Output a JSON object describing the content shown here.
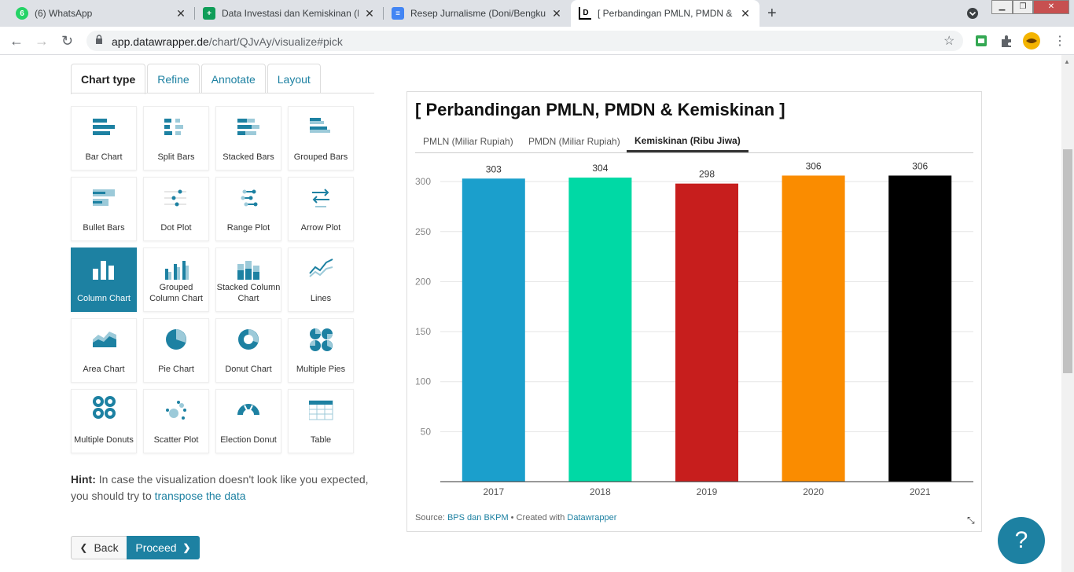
{
  "browser": {
    "tabs": [
      {
        "title": "(6) WhatsApp",
        "badge": "6"
      },
      {
        "title": "Data Investasi dan Kemiskinan (Fe",
        "badge": ""
      },
      {
        "title": "Resep Jurnalisme (Doni/Bengkulu",
        "badge": ""
      },
      {
        "title": "[ Perbandingan PMLN, PMDN &",
        "badge": "D"
      }
    ],
    "url_host": "app.datawrapper.de",
    "url_path": "/chart/QJvAy/visualize#pick"
  },
  "editor": {
    "tabs": [
      "Chart type",
      "Refine",
      "Annotate",
      "Layout"
    ],
    "chart_types": [
      "Bar Chart",
      "Split Bars",
      "Stacked Bars",
      "Grouped Bars",
      "Bullet Bars",
      "Dot Plot",
      "Range Plot",
      "Arrow Plot",
      "Column Chart",
      "Grouped Column Chart",
      "Stacked Column Chart",
      "Lines",
      "Area Chart",
      "Pie Chart",
      "Donut Chart",
      "Multiple Pies",
      "Multiple Donuts",
      "Scatter Plot",
      "Election Donut",
      "Table"
    ],
    "selected": "Column Chart",
    "hint_label": "Hint:",
    "hint_text": " In case the visualization doesn't look like you expected, you should try to ",
    "hint_link": "transpose the data",
    "back_label": "Back",
    "proceed_label": "Proceed"
  },
  "preview": {
    "title": "[ Perbandingan PMLN, PMDN & Kemiskinan ]",
    "tabs": [
      "PMLN (Miliar Rupiah)",
      "PMDN (Miliar Rupiah)",
      "Kemiskinan (Ribu Jiwa)"
    ],
    "active_tab": "Kemiskinan (Ribu Jiwa)",
    "source_label": "Source: ",
    "source_link": "BPS dan BKPM",
    "created_label": " • Created with ",
    "created_link": "Datawrapper"
  },
  "help_label": "?",
  "chart_data": {
    "type": "bar",
    "categories": [
      "2017",
      "2018",
      "2019",
      "2020",
      "2021"
    ],
    "values": [
      303,
      304,
      298,
      306,
      306
    ],
    "colors": [
      "#1b9fcc",
      "#00d9a5",
      "#c71e1d",
      "#fa8c00",
      "#000000"
    ],
    "yticks": [
      50,
      100,
      150,
      200,
      250,
      300
    ],
    "ylim": [
      0,
      310
    ],
    "grid": true,
    "title": "",
    "xlabel": "",
    "ylabel": ""
  }
}
